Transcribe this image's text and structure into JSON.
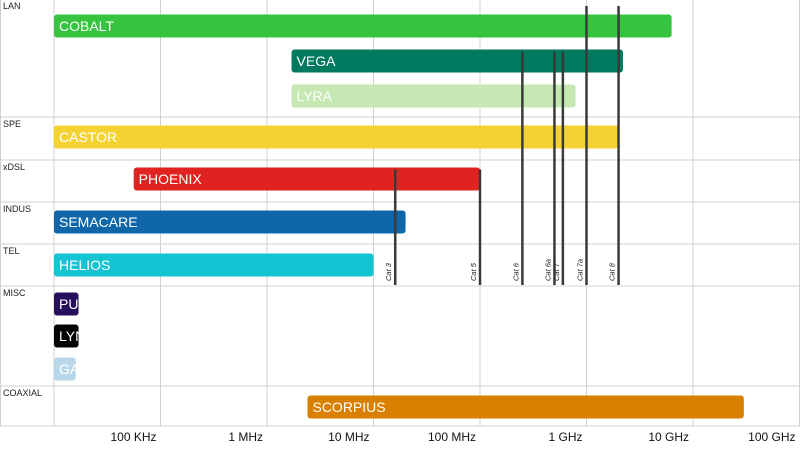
{
  "chart_data": {
    "type": "bar",
    "orientation": "horizontal",
    "x_scale": "log",
    "x_unit": "Hz",
    "grid": true,
    "xtick_labels": [
      "100 KHz",
      "1 MHz",
      "10 MHz",
      "100 MHz",
      "1 GHz",
      "10 GHz",
      "100 GHz"
    ],
    "xtick_values": [
      100000.0,
      1000000.0,
      10000000.0,
      100000000.0,
      1000000000.0,
      10000000000.0,
      100000000000.0
    ],
    "xlim": [
      10000.0,
      100000000000.0
    ],
    "groups": [
      {
        "name": "LAN",
        "bars": [
          {
            "label": "COBALT",
            "start": 10000.0,
            "end": 6300000000.0,
            "color": "#36c43e",
            "text_color": "#ffffff"
          },
          {
            "label": "VEGA",
            "start": 1700000.0,
            "end": 2200000000.0,
            "color": "#007a5e",
            "text_color": "#ffffff"
          },
          {
            "label": "LYRA",
            "start": 1700000.0,
            "end": 790000000.0,
            "color": "#c6e8b2",
            "text_color": "#ffffff"
          }
        ]
      },
      {
        "name": "SPE",
        "bars": [
          {
            "label": "CASTOR",
            "start": 10000.0,
            "end": 2000000000.0,
            "color": "#f3d232",
            "text_color": "#ffffff"
          }
        ]
      },
      {
        "name": "xDSL",
        "bars": [
          {
            "label": "PHOENIX",
            "start": 56000.0,
            "end": 100000000.0,
            "color": "#e02320",
            "text_color": "#ffffff"
          }
        ]
      },
      {
        "name": "INDUS",
        "bars": [
          {
            "label": "SEMACARE",
            "start": 10000.0,
            "end": 20000000.0,
            "color": "#0f66a8",
            "text_color": "#ffffff"
          }
        ]
      },
      {
        "name": "TEL",
        "bars": [
          {
            "label": "HELIOS",
            "start": 10000.0,
            "end": 10000000.0,
            "color": "#14c4d2",
            "text_color": "#ffffff"
          }
        ]
      },
      {
        "name": "MISC",
        "bars": [
          {
            "label": "PUMA",
            "start": 10000.0,
            "end": 17000.0,
            "color": "#26105c",
            "text_color": "#ffffff"
          },
          {
            "label": "LYNX",
            "start": 10000.0,
            "end": 17000.0,
            "color": "#050505",
            "text_color": "#ffffff"
          },
          {
            "label": "GAIA",
            "start": 10000.0,
            "end": 16000.0,
            "color": "#b9d7ea",
            "text_color": "#ffffff"
          }
        ]
      },
      {
        "name": "COAXIAL",
        "bars": [
          {
            "label": "SCORPIUS",
            "start": 2400000.0,
            "end": 30000000000.0,
            "color": "#d98000",
            "text_color": "#ffffff"
          }
        ]
      }
    ],
    "cable_lines": [
      {
        "label": "Cat 3",
        "freq": 16000000.0,
        "top_bar": "PHOENIX"
      },
      {
        "label": "Cat 5",
        "freq": 100000000.0,
        "top_bar": "PHOENIX"
      },
      {
        "label": "Cat 6",
        "freq": 250000000.0,
        "top_bar": "VEGA"
      },
      {
        "label": "Cat 6a",
        "freq": 500000000.0,
        "top_bar": "VEGA"
      },
      {
        "label": "Cat 7",
        "freq": 600000000.0,
        "top_bar": "VEGA"
      },
      {
        "label": "Cat 7a",
        "freq": 1000000000.0,
        "top_bar": "COBALT"
      },
      {
        "label": "Cat 8",
        "freq": 2000000000.0,
        "top_bar": "COBALT"
      }
    ]
  }
}
